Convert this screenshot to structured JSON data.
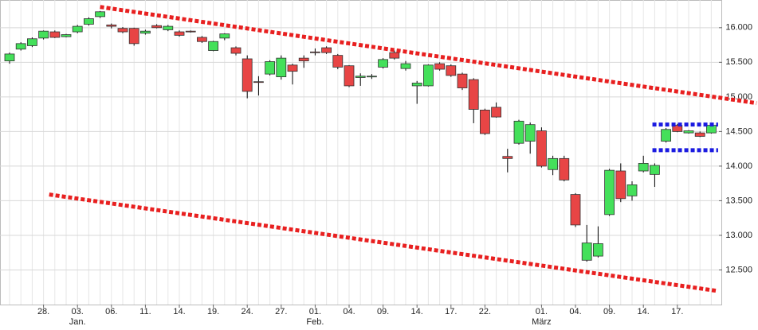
{
  "chart_data": {
    "type": "candlestick",
    "categories": [
      null,
      null,
      null,
      "28.",
      null,
      null,
      "03.",
      null,
      null,
      "06.",
      null,
      null,
      "11.",
      null,
      null,
      "14.",
      null,
      null,
      "19.",
      null,
      null,
      "24.",
      null,
      null,
      "27.",
      null,
      null,
      "01.",
      null,
      null,
      "04.",
      null,
      null,
      "09.",
      null,
      null,
      "14.",
      null,
      null,
      "17.",
      null,
      null,
      "22.",
      null,
      null,
      null,
      null,
      "01.",
      null,
      null,
      "04.",
      null,
      null,
      "09.",
      null,
      null,
      "14.",
      null,
      null,
      "17.",
      null,
      null,
      null
    ],
    "month_labels": [
      null,
      null,
      null,
      null,
      null,
      null,
      "Jan.",
      null,
      null,
      null,
      null,
      null,
      null,
      null,
      null,
      null,
      null,
      null,
      null,
      null,
      null,
      null,
      null,
      null,
      null,
      null,
      null,
      "Feb.",
      null,
      null,
      null,
      null,
      null,
      null,
      null,
      null,
      null,
      null,
      null,
      null,
      null,
      null,
      null,
      null,
      null,
      null,
      null,
      "März",
      null,
      null,
      null,
      null,
      null,
      null,
      null,
      null,
      null,
      null,
      null,
      null,
      null,
      null,
      null
    ],
    "open": [
      15520,
      15690,
      15740,
      15850,
      15940,
      15870,
      15940,
      16050,
      16160,
      16040,
      15990,
      15990,
      15920,
      16030,
      15970,
      15940,
      15950,
      15860,
      15670,
      15850,
      15710,
      15550,
      15220,
      15330,
      15290,
      15460,
      15560,
      15650,
      15710,
      15600,
      15450,
      15280,
      15290,
      15430,
      15640,
      15410,
      15160,
      15160,
      15480,
      15450,
      15330,
      15250,
      14810,
      14850,
      14140,
      14330,
      14360,
      14510,
      13950,
      14110,
      13590,
      12640,
      12700,
      13300,
      13930,
      13570,
      13930,
      13880,
      14360,
      14590,
      14480,
      14480,
      14480
    ],
    "high": [
      15640,
      15790,
      15860,
      15960,
      15960,
      15910,
      16040,
      16150,
      16240,
      16060,
      16010,
      16000,
      15970,
      16050,
      16040,
      15960,
      15960,
      15880,
      15810,
      15920,
      15730,
      15600,
      15300,
      15530,
      15600,
      15480,
      15600,
      15700,
      15730,
      15620,
      15460,
      15340,
      15330,
      15560,
      15670,
      15520,
      15230,
      15470,
      15500,
      15470,
      15350,
      15270,
      14830,
      14920,
      14250,
      14670,
      14630,
      14560,
      14150,
      14150,
      13610,
      13150,
      13130,
      13960,
      14040,
      13780,
      14150,
      14040,
      14550,
      14610,
      14520,
      14500,
      14600
    ],
    "low": [
      15480,
      15670,
      15720,
      15830,
      15850,
      15860,
      15920,
      16030,
      16140,
      15990,
      15920,
      15740,
      15900,
      15990,
      15950,
      15870,
      15930,
      15780,
      15660,
      15820,
      15600,
      14980,
      15020,
      15310,
      15250,
      15180,
      15420,
      15600,
      15620,
      15400,
      15140,
      15160,
      15260,
      15410,
      15540,
      15380,
      14900,
      15150,
      15380,
      15290,
      15100,
      14620,
      14450,
      14700,
      13910,
      14310,
      14180,
      13980,
      13870,
      13780,
      13120,
      12620,
      12680,
      13280,
      13480,
      13500,
      13910,
      13700,
      14340,
      14490,
      14470,
      14420,
      14470
    ],
    "close": [
      15620,
      15770,
      15840,
      15950,
      15860,
      15900,
      16020,
      16130,
      16230,
      16020,
      15940,
      15770,
      15950,
      16000,
      16020,
      15890,
      15940,
      15800,
      15800,
      15910,
      15630,
      15080,
      15210,
      15510,
      15560,
      15370,
      15520,
      15640,
      15640,
      15430,
      15160,
      15300,
      15300,
      15540,
      15560,
      15480,
      15200,
      15460,
      15400,
      15310,
      15130,
      14820,
      14470,
      14710,
      14110,
      14650,
      14600,
      14000,
      14110,
      13800,
      13150,
      12890,
      12880,
      13940,
      13530,
      13730,
      14040,
      14010,
      14530,
      14500,
      14510,
      14430,
      14590
    ],
    "up_color": "#44e05a",
    "down_color": "#e84545",
    "ylim": [
      12000,
      16400
    ],
    "yticks": [
      {
        "value": 12500,
        "label": "12.500"
      },
      {
        "value": 13000,
        "label": "13.000"
      },
      {
        "value": 13500,
        "label": "13.500"
      },
      {
        "value": 14000,
        "label": "14.000"
      },
      {
        "value": 14500,
        "label": "14.500"
      },
      {
        "value": 15000,
        "label": "15.000"
      },
      {
        "value": 15500,
        "label": "15.500"
      },
      {
        "value": 16000,
        "label": "16.000"
      }
    ],
    "grid": true,
    "trendlines": [
      {
        "color": "#e82020",
        "x": [
          8,
          66
        ],
        "values": [
          16300,
          14910
        ]
      },
      {
        "color": "#e82020",
        "x": [
          3.5,
          62.4
        ],
        "values": [
          13590,
          12200
        ]
      },
      {
        "color": "#1a1ae0",
        "x": [
          56.8,
          62.6
        ],
        "values": [
          14600,
          14600
        ]
      },
      {
        "color": "#1a1ae0",
        "x": [
          56.8,
          62.6
        ],
        "values": [
          14230,
          14230
        ]
      }
    ]
  }
}
